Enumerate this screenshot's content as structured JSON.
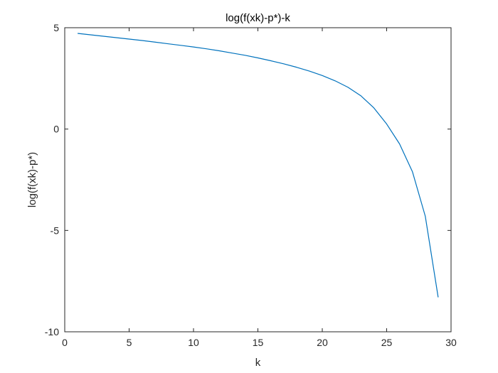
{
  "chart_data": {
    "type": "line",
    "title": "log(f(xk)-p*)-k",
    "xlabel": "k",
    "ylabel": "log(f(xk)-p*)",
    "xlim": [
      0,
      30
    ],
    "ylim": [
      -10,
      5
    ],
    "xticks": [
      0,
      5,
      10,
      15,
      20,
      25,
      30
    ],
    "xtick_labels": [
      "0",
      "5",
      "10",
      "15",
      "20",
      "25",
      "30"
    ],
    "yticks": [
      -10,
      -5,
      0,
      5
    ],
    "ytick_labels": [
      "-10",
      "-5",
      "0",
      "5"
    ],
    "grid": false,
    "series": [
      {
        "color": "#0072BD",
        "x": [
          1,
          2,
          3,
          4,
          5,
          6,
          7,
          8,
          9,
          10,
          11,
          12,
          13,
          14,
          15,
          16,
          17,
          18,
          19,
          20,
          21,
          22,
          23,
          24,
          25,
          26,
          27,
          28,
          29
        ],
        "y": [
          4.72,
          4.65,
          4.58,
          4.51,
          4.44,
          4.37,
          4.29,
          4.21,
          4.13,
          4.05,
          3.96,
          3.86,
          3.75,
          3.64,
          3.51,
          3.37,
          3.22,
          3.05,
          2.86,
          2.64,
          2.38,
          2.06,
          1.64,
          1.05,
          0.25,
          -0.73,
          -2.1,
          -4.3,
          -8.3
        ]
      }
    ]
  }
}
